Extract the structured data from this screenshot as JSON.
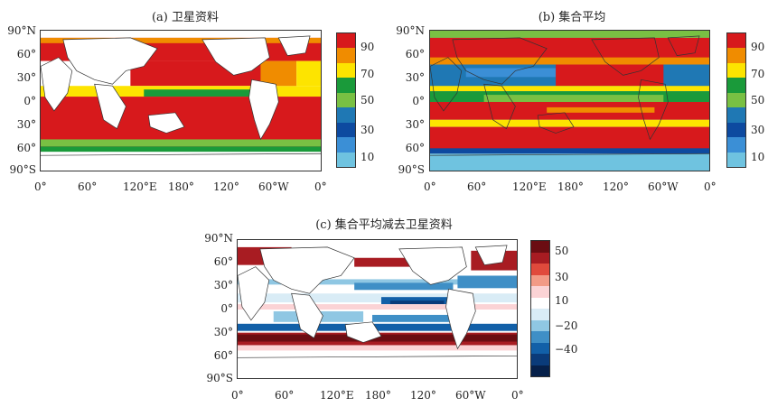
{
  "panels": [
    {
      "id": "a",
      "title": "(a) 卫星资料",
      "lat_labels": [
        "90°N",
        "60°",
        "30°",
        "0°",
        "30°",
        "60°",
        "90°S"
      ],
      "lon_labels": [
        "0°",
        "60°",
        "120°E",
        "180°",
        "120°",
        "60°W",
        "0°"
      ],
      "colorbar": {
        "labels": [
          "90",
          "70",
          "50",
          "30",
          "10"
        ],
        "colors": [
          "#d7191c",
          "#f08c00",
          "#fde400",
          "#1a9a3a",
          "#79c043",
          "#1f78b4",
          "#0d4aa0",
          "#3b8fd6",
          "#6fc3e0"
        ]
      },
      "color_legend": {
        "high": "#d7191c",
        "mid": "#f08c00",
        "yellow": "#fde400",
        "green": "#1a9a3a",
        "light_green": "#79c043"
      }
    },
    {
      "id": "b",
      "title": "(b) 集合平均",
      "lat_labels": [
        "90°N",
        "60°",
        "30°",
        "0°",
        "30°",
        "60°",
        "90°S"
      ],
      "lon_labels": [
        "0°",
        "60°",
        "120°E",
        "180°",
        "120°",
        "60°W",
        "0°"
      ],
      "colorbar": {
        "labels": [
          "90",
          "70",
          "50",
          "30",
          "10"
        ],
        "colors": [
          "#d7191c",
          "#f08c00",
          "#fde400",
          "#1a9a3a",
          "#79c043",
          "#1f78b4",
          "#0d4aa0",
          "#3b8fd6",
          "#6fc3e0"
        ]
      }
    },
    {
      "id": "c",
      "title": "(c) 集合平均减去卫星资料",
      "lat_labels": [
        "90°N",
        "60°",
        "30°",
        "0°",
        "30°",
        "60°",
        "90°S"
      ],
      "lon_labels": [
        "0°",
        "60°",
        "120°E",
        "180°",
        "120°",
        "60°W",
        "0°"
      ],
      "colorbar": {
        "labels": [
          "50",
          "30",
          "10",
          "−20",
          "−40"
        ],
        "colors": [
          "#6b0d12",
          "#a81c22",
          "#e04a3c",
          "#f29a86",
          "#fbd3d5",
          "#ffffff",
          "#d9ecf6",
          "#8fc7e3",
          "#3f8fc6",
          "#1260a8",
          "#0a3b7a",
          "#06204a"
        ]
      }
    }
  ]
}
